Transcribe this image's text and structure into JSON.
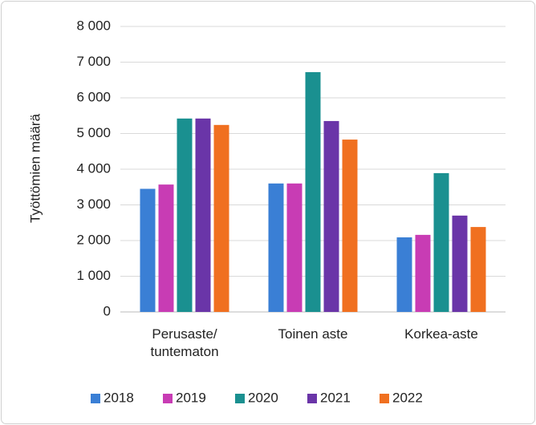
{
  "chart_data": {
    "type": "bar",
    "ylabel": "Työttömien määrä",
    "categories": [
      "Perusaste/ tuntematon",
      "Toinen aste",
      "Korkea-aste"
    ],
    "series": [
      {
        "name": "2018",
        "color": "#3a7fd5",
        "values": [
          3450,
          3600,
          2090
        ]
      },
      {
        "name": "2019",
        "color": "#c83cb4",
        "values": [
          3570,
          3600,
          2160
        ]
      },
      {
        "name": "2020",
        "color": "#1a9090",
        "values": [
          5420,
          6720,
          3890
        ]
      },
      {
        "name": "2021",
        "color": "#6a35a8",
        "values": [
          5420,
          5350,
          2700
        ]
      },
      {
        "name": "2022",
        "color": "#f07020",
        "values": [
          5240,
          4830,
          2380
        ]
      }
    ],
    "ylim": [
      0,
      8000
    ],
    "yticks": [
      0,
      {
        "value": 1000,
        "label": "1 000"
      },
      {
        "value": 2000,
        "label": "2 000"
      },
      {
        "value": 3000,
        "label": "3 000"
      },
      {
        "value": 4000,
        "label": "4 000"
      },
      {
        "value": 5000,
        "label": "5 000"
      },
      {
        "value": 6000,
        "label": "6 000"
      },
      {
        "value": 7000,
        "label": "7 000"
      },
      {
        "value": 8000,
        "label": "8 000"
      }
    ],
    "grid": true,
    "legend": "bottom"
  }
}
